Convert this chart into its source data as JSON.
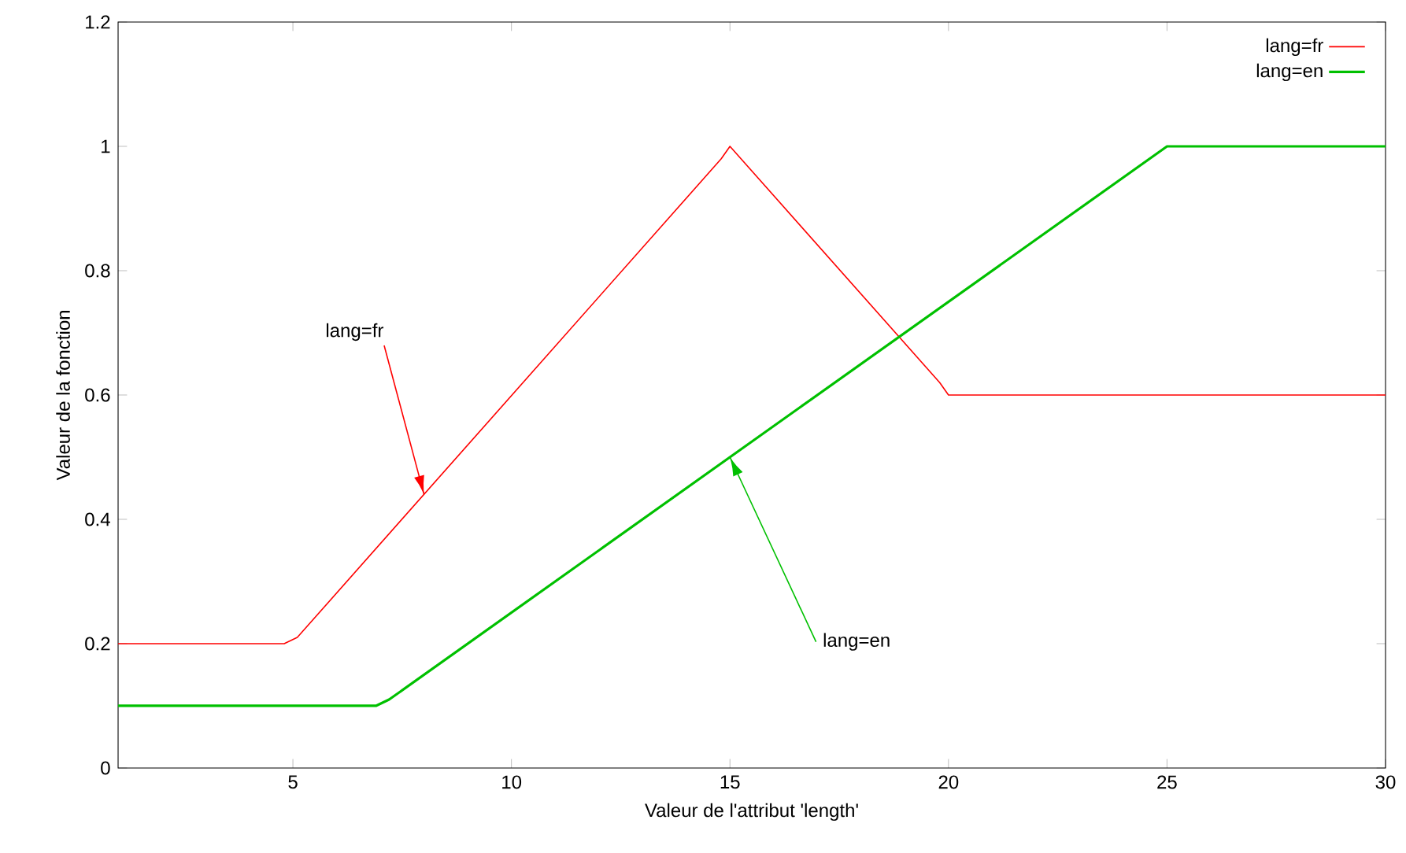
{
  "chart_data": {
    "type": "line",
    "xlabel": "Valeur de l'attribut 'length'",
    "ylabel": "Valeur de la fonction",
    "xlim": [
      1,
      30
    ],
    "ylim": [
      0,
      1.2
    ],
    "xticks": [
      5,
      10,
      15,
      20,
      25,
      30
    ],
    "yticks": [
      0,
      0.2,
      0.4,
      0.6,
      0.8,
      1,
      1.2
    ],
    "legend": "top right",
    "marker": "none",
    "line_style": "solid",
    "grid": false,
    "series": [
      {
        "name": "lang=fr",
        "color": "#ff0000",
        "x": [
          1,
          4.8,
          5.1,
          14.8,
          15,
          19.8,
          20,
          30
        ],
        "values": [
          0.2,
          0.2,
          0.21,
          0.98,
          1,
          0.62,
          0.6,
          0.6
        ]
      },
      {
        "name": "lang=en",
        "color": "#00c000",
        "x": [
          1,
          6.9,
          7.2,
          25,
          30
        ],
        "values": [
          0.1,
          0.1,
          0.11,
          1,
          1
        ]
      }
    ],
    "annotations": [
      {
        "text": "lang=fr",
        "x": 8,
        "y": 0.44
      },
      {
        "text": "lang=en",
        "x": 15,
        "y": 0.5
      }
    ]
  }
}
